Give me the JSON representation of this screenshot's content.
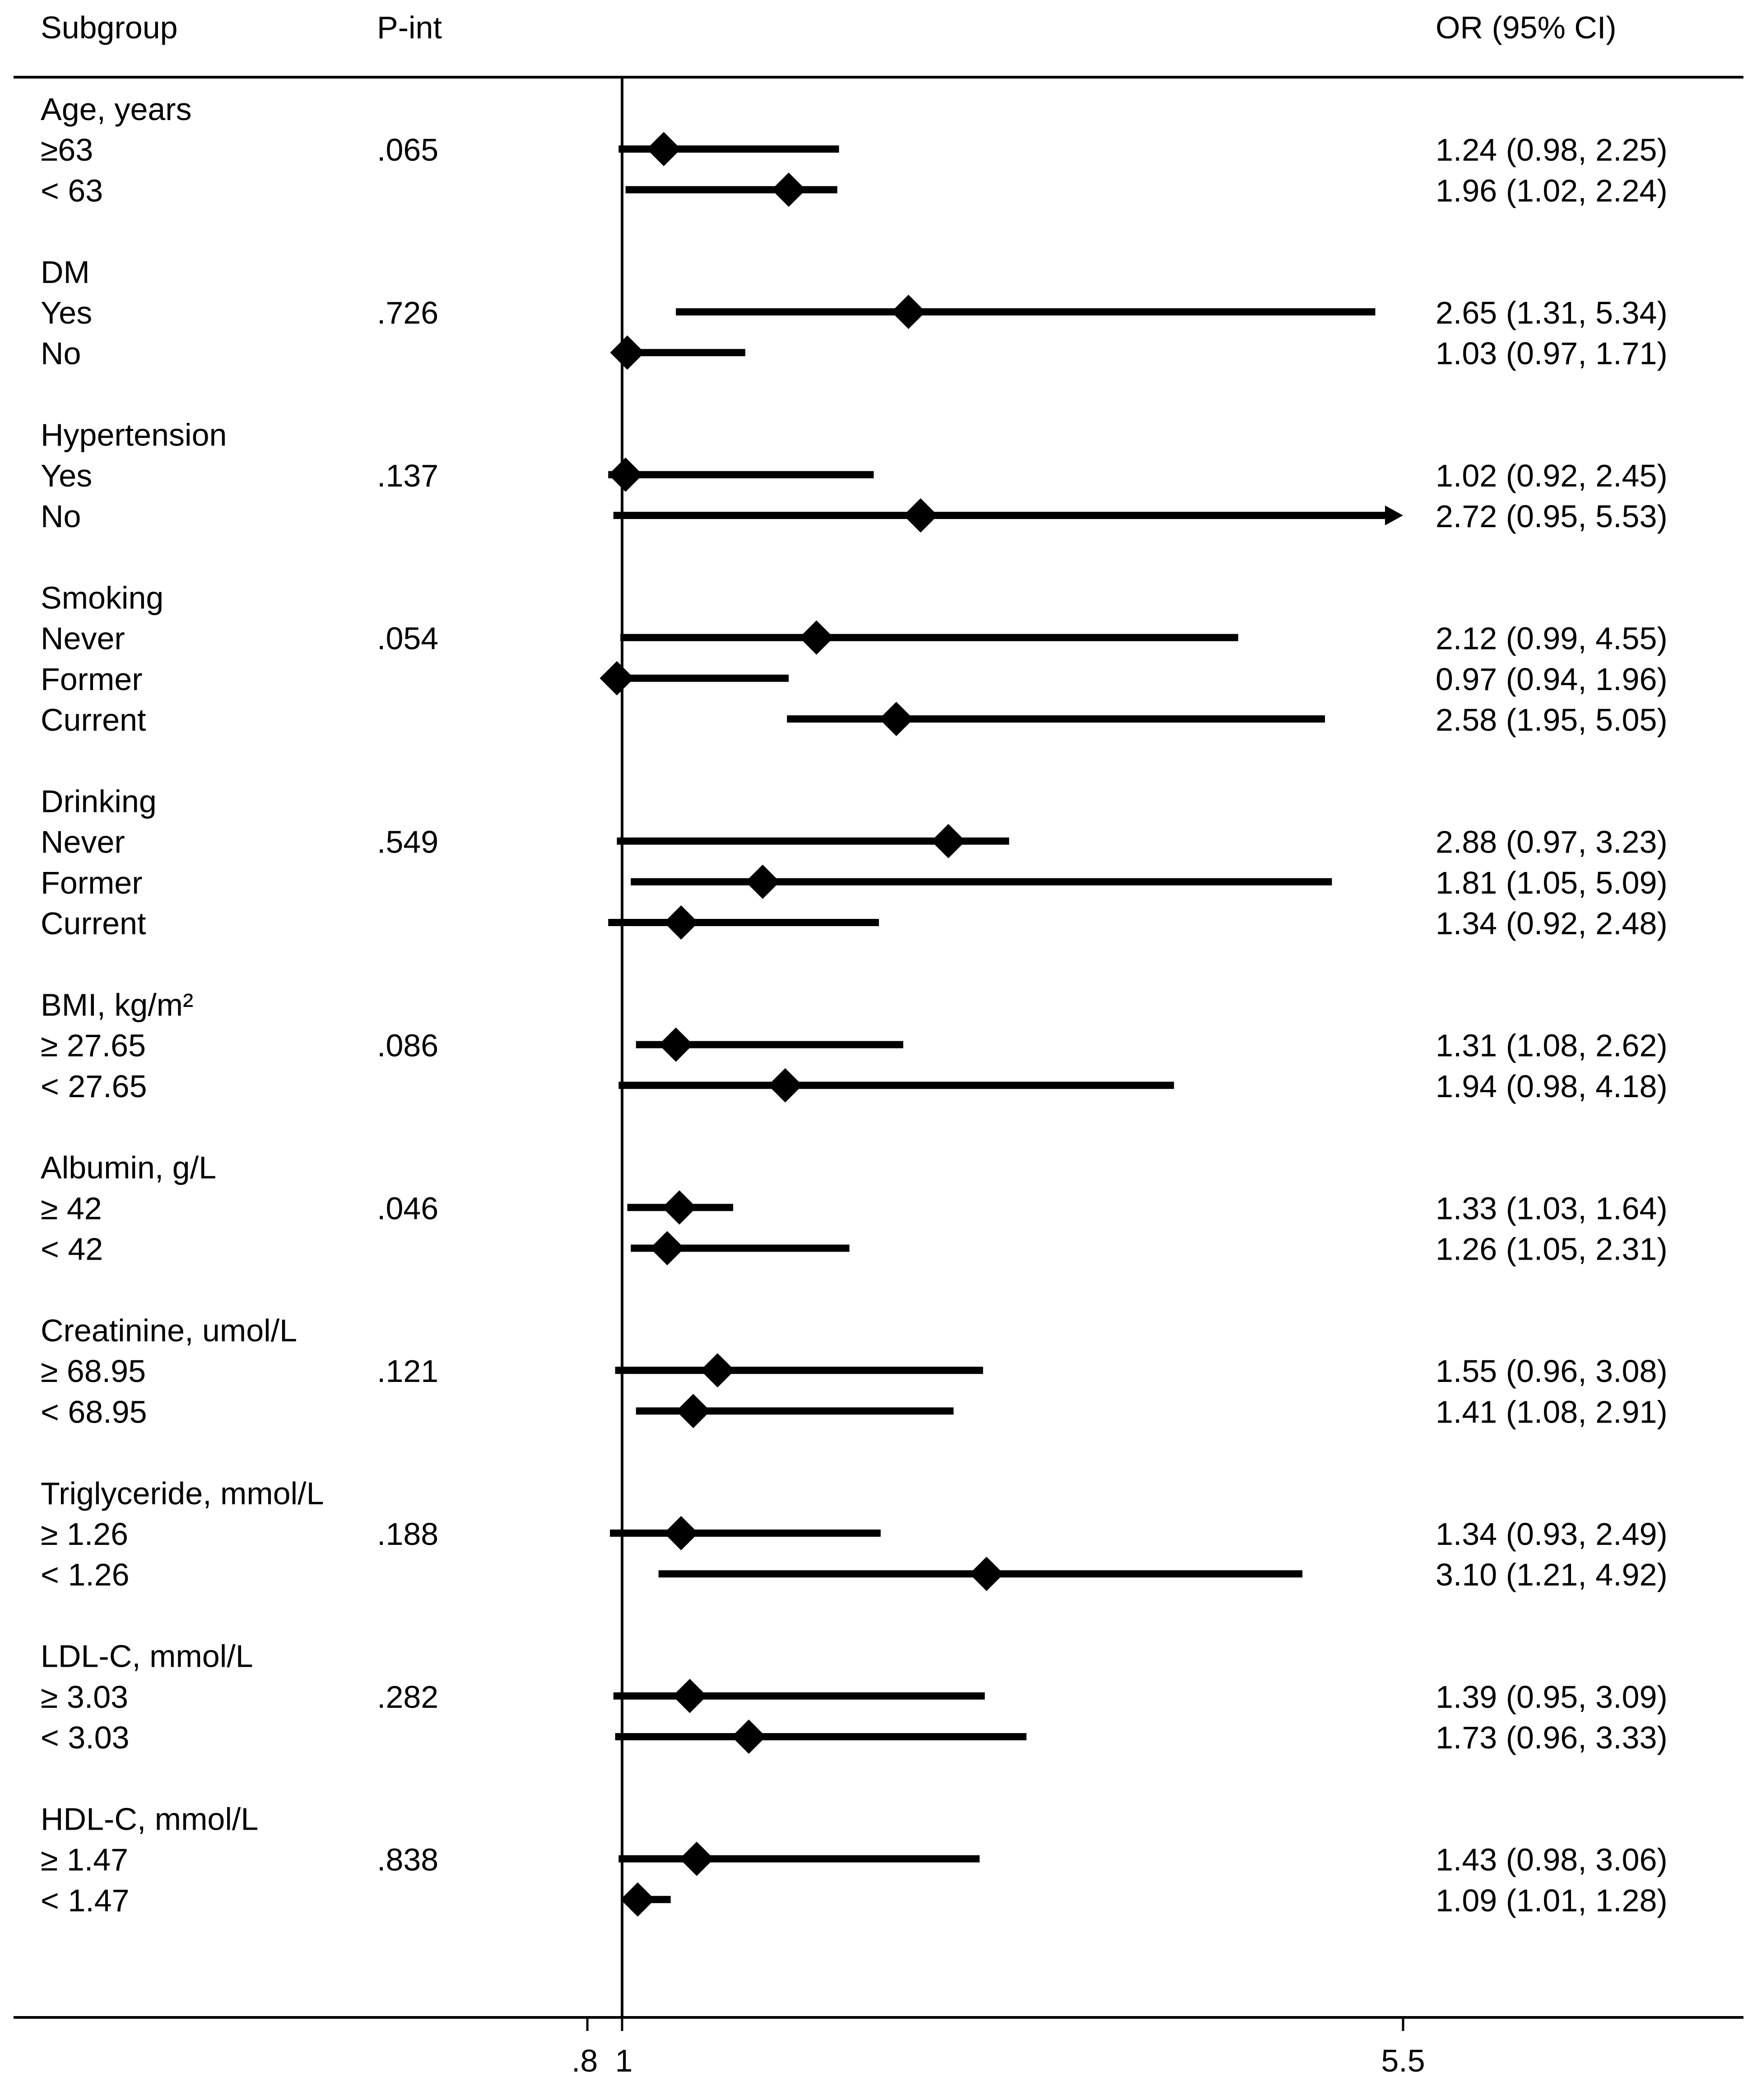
{
  "chart_data": {
    "type": "forest",
    "title": "",
    "headers": {
      "subgroup": "Subgroup",
      "pint": "P-int",
      "or": "OR (95% CI)"
    },
    "x_axis": {
      "ticks": [
        {
          "value": 0.8,
          "label": ".8"
        },
        {
          "value": 1,
          "label": "1"
        },
        {
          "value": 5.5,
          "label": "5.5"
        }
      ],
      "reference_line": 1,
      "xlim": [
        0.8,
        5.5
      ]
    },
    "groups": [
      {
        "name": "Age, years",
        "pint": ".065",
        "rows": [
          {
            "label": "≥63",
            "or": 1.24,
            "lo": 0.98,
            "hi": 2.25,
            "text": "1.24 (0.98, 2.25)"
          },
          {
            "label": "< 63",
            "or": 1.96,
            "lo": 1.02,
            "hi": 2.24,
            "text": "1.96 (1.02, 2.24)"
          }
        ]
      },
      {
        "name": "DM",
        "pint": ".726",
        "rows": [
          {
            "label": "Yes",
            "or": 2.65,
            "lo": 1.31,
            "hi": 5.34,
            "text": "2.65 (1.31, 5.34)"
          },
          {
            "label": "No",
            "or": 1.03,
            "lo": 0.97,
            "hi": 1.71,
            "text": "1.03 (0.97, 1.71)"
          }
        ]
      },
      {
        "name": "Hypertension",
        "pint": ".137",
        "rows": [
          {
            "label": "Yes",
            "or": 1.02,
            "lo": 0.92,
            "hi": 2.45,
            "text": "1.02 (0.92, 2.45)"
          },
          {
            "label": "No",
            "or": 2.72,
            "lo": 0.95,
            "hi": 5.53,
            "text": "2.72 (0.95, 5.53)",
            "arrow": true
          }
        ]
      },
      {
        "name": "Smoking",
        "pint": ".054",
        "rows": [
          {
            "label": "Never",
            "or": 2.12,
            "lo": 0.99,
            "hi": 4.55,
            "text": "2.12 (0.99, 4.55)"
          },
          {
            "label": "Former",
            "or": 0.97,
            "lo": 0.94,
            "hi": 1.96,
            "text": "0.97 (0.94, 1.96)"
          },
          {
            "label": "Current",
            "or": 2.58,
            "lo": 1.95,
            "hi": 5.05,
            "text": "2.58 (1.95, 5.05)"
          }
        ]
      },
      {
        "name": "Drinking",
        "pint": ".549",
        "rows": [
          {
            "label": "Never",
            "or": 2.88,
            "lo": 0.97,
            "hi": 3.23,
            "text": "2.88 (0.97, 3.23)"
          },
          {
            "label": "Former",
            "or": 1.81,
            "lo": 1.05,
            "hi": 5.09,
            "text": "1.81 (1.05, 5.09)"
          },
          {
            "label": "Current",
            "or": 1.34,
            "lo": 0.92,
            "hi": 2.48,
            "text": "1.34 (0.92, 2.48)"
          }
        ]
      },
      {
        "name": "BMI, kg/m²",
        "pint": ".086",
        "rows": [
          {
            "label": "≥ 27.65",
            "or": 1.31,
            "lo": 1.08,
            "hi": 2.62,
            "text": "1.31 (1.08, 2.62)"
          },
          {
            "label": "< 27.65",
            "or": 1.94,
            "lo": 0.98,
            "hi": 4.18,
            "text": "1.94 (0.98, 4.18)"
          }
        ]
      },
      {
        "name": "Albumin, g/L",
        "pint": ".046",
        "rows": [
          {
            "label": "≥ 42",
            "or": 1.33,
            "lo": 1.03,
            "hi": 1.64,
            "text": "1.33 (1.03, 1.64)"
          },
          {
            "label": "< 42",
            "or": 1.26,
            "lo": 1.05,
            "hi": 2.31,
            "text": "1.26 (1.05, 2.31)"
          }
        ]
      },
      {
        "name": "Creatinine, umol/L",
        "pint": ".121",
        "rows": [
          {
            "label": "≥ 68.95",
            "or": 1.55,
            "lo": 0.96,
            "hi": 3.08,
            "text": "1.55 (0.96, 3.08)"
          },
          {
            "label": "< 68.95",
            "or": 1.41,
            "lo": 1.08,
            "hi": 2.91,
            "text": "1.41 (1.08, 2.91)"
          }
        ]
      },
      {
        "name": "Triglyceride, mmol/L",
        "pint": ".188",
        "rows": [
          {
            "label": "≥ 1.26",
            "or": 1.34,
            "lo": 0.93,
            "hi": 2.49,
            "text": "1.34 (0.93, 2.49)"
          },
          {
            "label": "< 1.26",
            "or": 3.1,
            "lo": 1.21,
            "hi": 4.92,
            "text": "3.10 (1.21, 4.92)"
          }
        ]
      },
      {
        "name": "LDL-C, mmol/L",
        "pint": ".282",
        "rows": [
          {
            "label": "≥ 3.03",
            "or": 1.39,
            "lo": 0.95,
            "hi": 3.09,
            "text": "1.39 (0.95, 3.09)"
          },
          {
            "label": "< 3.03",
            "or": 1.73,
            "lo": 0.96,
            "hi": 3.33,
            "text": "1.73 (0.96, 3.33)"
          }
        ]
      },
      {
        "name": "HDL-C, mmol/L",
        "pint": ".838",
        "rows": [
          {
            "label": "≥ 1.47",
            "or": 1.43,
            "lo": 0.98,
            "hi": 3.06,
            "text": "1.43 (0.98, 3.06)"
          },
          {
            "label": "< 1.47",
            "or": 1.09,
            "lo": 1.01,
            "hi": 1.28,
            "text": "1.09 (1.01, 1.28)"
          }
        ]
      }
    ]
  }
}
